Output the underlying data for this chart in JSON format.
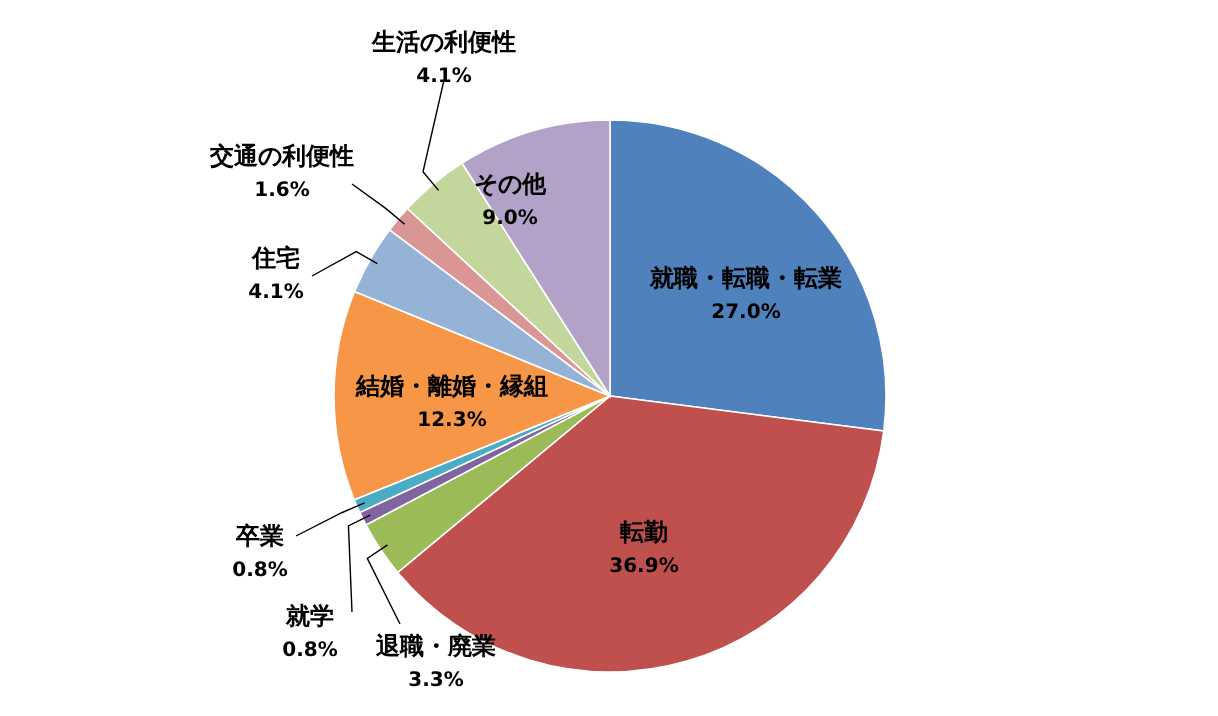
{
  "chart_data": {
    "type": "pie",
    "categories": [
      "就職・転職・転業",
      "転勤",
      "退職・廃業",
      "就学",
      "卒業",
      "結婚・離婚・縁組",
      "住宅",
      "交通の利便性",
      "生活の利便性",
      "その他"
    ],
    "values": [
      27.0,
      36.9,
      3.3,
      0.8,
      0.8,
      12.3,
      4.1,
      1.6,
      4.1,
      9.0
    ],
    "value_labels": [
      "27.0%",
      "36.9%",
      "3.3%",
      "0.8%",
      "0.8%",
      "12.3%",
      "4.1%",
      "1.6%",
      "4.1%",
      "9.0%"
    ],
    "colors": [
      "#4f81bd",
      "#c0504d",
      "#9bbb59",
      "#8064a2",
      "#4bacc6",
      "#f79646",
      "#95b3d7",
      "#da9694",
      "#c3d69b",
      "#b3a2c7"
    ]
  }
}
